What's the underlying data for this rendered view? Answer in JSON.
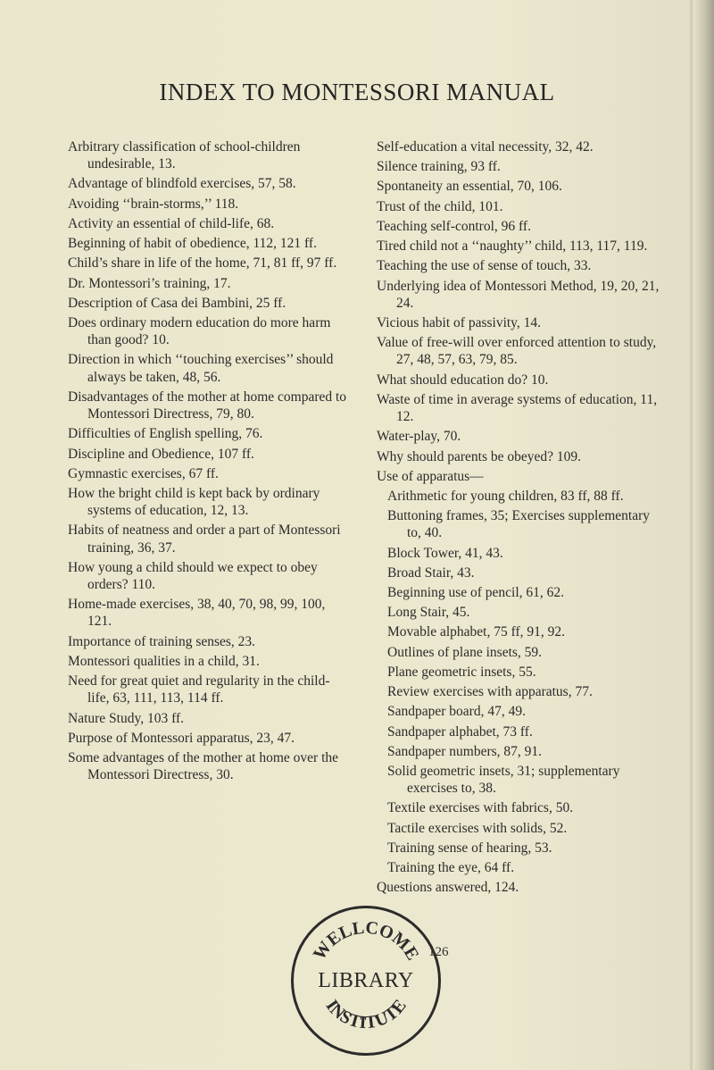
{
  "title": "INDEX TO MONTESSORI MANUAL",
  "stamp": {
    "top": "WELLCOME",
    "center": "LIBRARY",
    "bottom": "INSTITUTE"
  },
  "pageNumber": "126",
  "left": [
    "Arbitrary classification of school-children undesirable, 13.",
    "Advantage of blindfold exercises, 57, 58.",
    "Avoiding ‘‘brain-storms,’’ 118.",
    "Activity an essential of child-life, 68.",
    "Beginning of habit of obedience, 112, 121 ff.",
    "Child’s share in life of the home, 71, 81 ff, 97 ff.",
    "Dr. Montessori’s training, 17.",
    "Description of Casa dei Bambini, 25 ff.",
    "Does ordinary modern education do more harm than good? 10.",
    "Direction in which ‘‘touching exercises’’ should always be taken, 48, 56.",
    "Disadvantages of the mother at home compared to Montessori Directress, 79, 80.",
    "Difficulties of English spelling, 76.",
    "Discipline and Obedience, 107 ff.",
    "Gymnastic exercises, 67 ff.",
    "How the bright child is kept back by ordinary systems of education, 12, 13.",
    "Habits of neatness and order a part of Montessori training, 36, 37.",
    "How young a child should we expect to obey orders? 110.",
    "Home-made exercises, 38, 40, 70, 98, 99, 100, 121.",
    "Importance of training senses, 23.",
    "Montessori qualities in a child, 31.",
    "Need for great quiet and regularity in the child-life, 63, 111, 113, 114 ff.",
    "Nature Study, 103 ff.",
    "Purpose of Montessori apparatus, 23, 47.",
    "Some advantages of the mother at home over the Montessori Directress, 30."
  ],
  "right_top": [
    "Self-education a vital necessity, 32, 42.",
    "Silence training, 93 ff.",
    "Spontaneity an essential, 70, 106.",
    "Trust of the child, 101.",
    "Teaching self-control, 96 ff.",
    "Tired child not a ‘‘naughty’’ child, 113, 117, 119.",
    "Teaching the use of sense of touch, 33.",
    "Underlying idea of Montessori Method, 19, 20, 21, 24.",
    "Vicious habit of passivity, 14.",
    "Value of free-will over enforced attention to study, 27, 48, 57, 63, 79, 85.",
    "What should education do? 10.",
    "Waste of time in average systems of education, 11, 12.",
    "Water-play, 70.",
    "Why should parents be obeyed? 109.",
    "Use of apparatus—"
  ],
  "right_sub": [
    "Arithmetic for young children, 83 ff, 88 ff.",
    "Buttoning frames, 35; Exercises supplementary to, 40.",
    "Block Tower, 41, 43.",
    "Broad Stair, 43.",
    "Beginning use of pencil, 61, 62.",
    "Long Stair, 45.",
    "Movable alphabet, 75 ff, 91, 92.",
    "Outlines of plane insets, 59.",
    "Plane geometric insets, 55.",
    "Review exercises with apparatus, 77.",
    "Sandpaper board, 47, 49.",
    "Sandpaper alphabet, 73 ff.",
    "Sandpaper numbers, 87, 91.",
    "Solid geometric insets, 31; supplementary exercises to, 38.",
    "Textile exercises with fabrics, 50.",
    "Tactile exercises with solids, 52.",
    "Training sense of hearing, 53.",
    "Training the eye, 64 ff."
  ],
  "right_last": [
    "Questions answered, 124."
  ]
}
